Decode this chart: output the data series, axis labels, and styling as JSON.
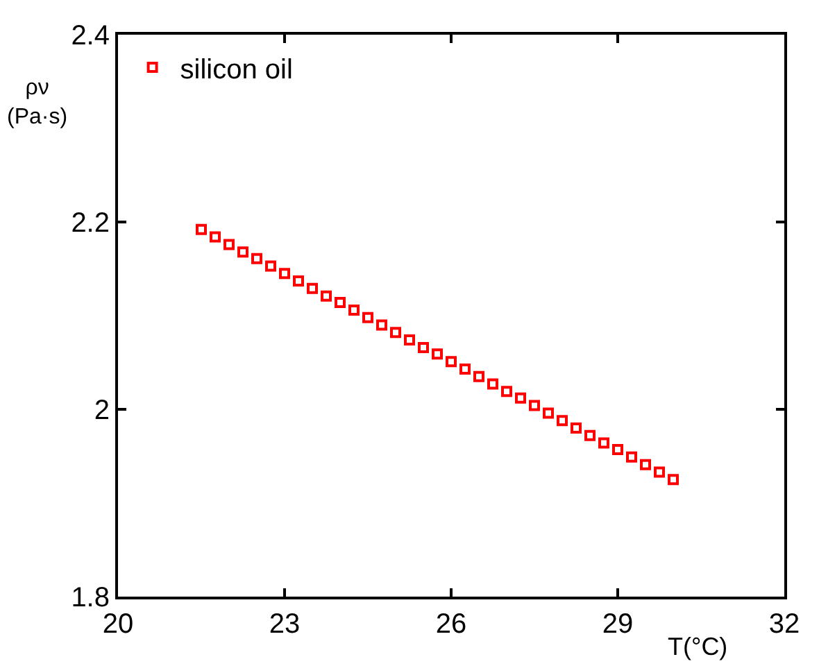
{
  "chart_data": {
    "type": "scatter",
    "xlabel": "T(°C)",
    "ylabel": "ρν\n(Pa·s)",
    "x": [
      21.5,
      21.75,
      22.0,
      22.25,
      22.5,
      22.75,
      23.0,
      23.25,
      23.5,
      23.75,
      24.0,
      24.25,
      24.5,
      24.75,
      25.0,
      25.25,
      25.5,
      25.75,
      26.0,
      26.25,
      26.5,
      26.75,
      27.0,
      27.25,
      27.5,
      27.75,
      28.0,
      28.25,
      28.5,
      28.75,
      29.0,
      29.25,
      29.5,
      29.75,
      30.0
    ],
    "series": [
      {
        "name": "silicon oil",
        "color": "#ff0000",
        "values": [
          2.192,
          2.184,
          2.176,
          2.168,
          2.161,
          2.153,
          2.145,
          2.137,
          2.129,
          2.121,
          2.114,
          2.106,
          2.098,
          2.09,
          2.082,
          2.074,
          2.066,
          2.059,
          2.051,
          2.043,
          2.035,
          2.027,
          2.019,
          2.012,
          2.004,
          1.996,
          1.988,
          1.98,
          1.972,
          1.964,
          1.957,
          1.949,
          1.941,
          1.933,
          1.925
        ]
      }
    ],
    "xlim": [
      20,
      32
    ],
    "xticks": [
      20,
      23,
      26,
      29,
      32
    ],
    "ylim": [
      1.8,
      2.4
    ],
    "yticks": [
      1.8,
      2.0,
      2.2,
      2.4
    ],
    "marker": "square",
    "legend": "top left"
  }
}
